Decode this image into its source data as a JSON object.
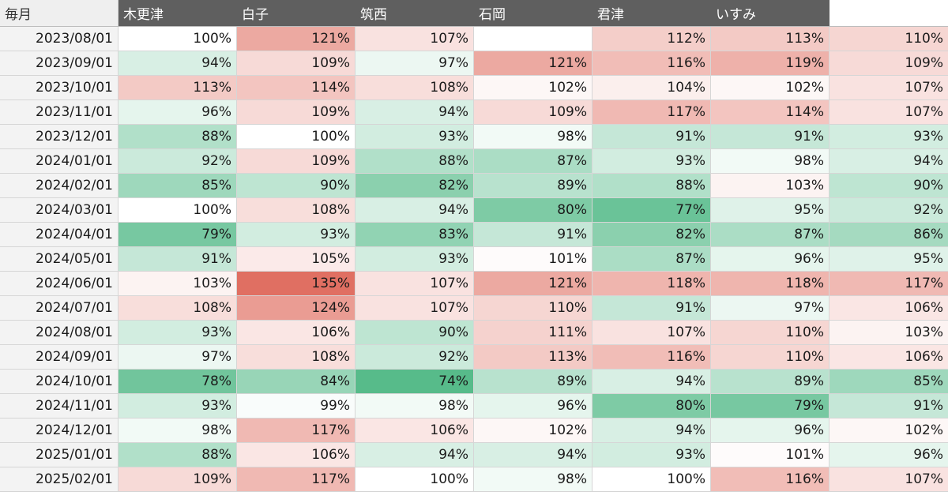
{
  "header": {
    "corner_label": "毎月",
    "columns": [
      "木更津",
      "白子",
      "筑西",
      "石岡",
      "君津",
      "いすみ",
      ""
    ]
  },
  "colors": {
    "header_bg": "#5f5f5f",
    "header_text": "#ffffff",
    "date_bg": "#f3f3f3",
    "high_red": "#e06f62",
    "neutral": "#ffffff",
    "low_green": "#57bb8a"
  },
  "rows": [
    {
      "date": "2023/08/01",
      "values": [
        "100%",
        "121%",
        "107%",
        "",
        "112%",
        "113%",
        "110%"
      ]
    },
    {
      "date": "2023/09/01",
      "values": [
        "94%",
        "109%",
        "97%",
        "121%",
        "116%",
        "119%",
        "109%"
      ]
    },
    {
      "date": "2023/10/01",
      "values": [
        "113%",
        "114%",
        "108%",
        "102%",
        "104%",
        "102%",
        "107%"
      ]
    },
    {
      "date": "2023/11/01",
      "values": [
        "96%",
        "109%",
        "94%",
        "109%",
        "117%",
        "114%",
        "107%"
      ]
    },
    {
      "date": "2023/12/01",
      "values": [
        "88%",
        "100%",
        "93%",
        "98%",
        "91%",
        "91%",
        "93%"
      ]
    },
    {
      "date": "2024/01/01",
      "values": [
        "92%",
        "109%",
        "88%",
        "87%",
        "93%",
        "98%",
        "94%"
      ]
    },
    {
      "date": "2024/02/01",
      "values": [
        "85%",
        "90%",
        "82%",
        "89%",
        "88%",
        "103%",
        "90%"
      ]
    },
    {
      "date": "2024/03/01",
      "values": [
        "100%",
        "108%",
        "94%",
        "80%",
        "77%",
        "95%",
        "92%"
      ]
    },
    {
      "date": "2024/04/01",
      "values": [
        "79%",
        "93%",
        "83%",
        "91%",
        "82%",
        "87%",
        "86%"
      ]
    },
    {
      "date": "2024/05/01",
      "values": [
        "91%",
        "105%",
        "93%",
        "101%",
        "87%",
        "96%",
        "95%"
      ]
    },
    {
      "date": "2024/06/01",
      "values": [
        "103%",
        "135%",
        "107%",
        "121%",
        "118%",
        "118%",
        "117%"
      ]
    },
    {
      "date": "2024/07/01",
      "values": [
        "108%",
        "124%",
        "107%",
        "110%",
        "91%",
        "97%",
        "106%"
      ]
    },
    {
      "date": "2024/08/01",
      "values": [
        "93%",
        "106%",
        "90%",
        "111%",
        "107%",
        "110%",
        "103%"
      ]
    },
    {
      "date": "2024/09/01",
      "values": [
        "97%",
        "108%",
        "92%",
        "113%",
        "116%",
        "110%",
        "106%"
      ]
    },
    {
      "date": "2024/10/01",
      "values": [
        "78%",
        "84%",
        "74%",
        "89%",
        "94%",
        "89%",
        "85%"
      ]
    },
    {
      "date": "2024/11/01",
      "values": [
        "93%",
        "99%",
        "98%",
        "96%",
        "80%",
        "79%",
        "91%"
      ]
    },
    {
      "date": "2024/12/01",
      "values": [
        "98%",
        "117%",
        "106%",
        "102%",
        "94%",
        "96%",
        "102%"
      ]
    },
    {
      "date": "2025/01/01",
      "values": [
        "88%",
        "106%",
        "94%",
        "94%",
        "93%",
        "101%",
        "96%"
      ]
    },
    {
      "date": "2025/02/01",
      "values": [
        "109%",
        "117%",
        "100%",
        "98%",
        "100%",
        "116%",
        "107%"
      ]
    }
  ]
}
